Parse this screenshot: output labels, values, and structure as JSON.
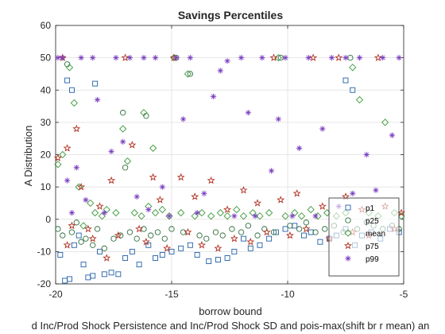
{
  "chart_data": {
    "type": "scatter",
    "title": "Savings Percentiles",
    "xlabel": "borrow bound",
    "ylabel": "A Distribution",
    "bottom_caption": "d Inc/Prod Shock Persistence and Inc/Prod Shock SD and pois-max(shift br r mean) an",
    "xlim": [
      -20,
      -5
    ],
    "ylim": [
      -20,
      60
    ],
    "x_ticks": [
      -20,
      -15,
      -10,
      -5
    ],
    "y_ticks": [
      -20,
      -10,
      0,
      10,
      20,
      30,
      40,
      50,
      60
    ],
    "x_tick_labels": [
      "-20",
      "-15",
      "-10",
      "-5"
    ],
    "y_tick_labels": [
      "-20",
      "-10",
      "0",
      "10",
      "20",
      "30",
      "40",
      "50",
      "60"
    ],
    "grid": true,
    "legend_position": "bottom-right",
    "series": [
      {
        "name": "p1",
        "marker": "square",
        "color": "#1f5fa8",
        "points": [
          [
            -19.8,
            -11
          ],
          [
            -19.6,
            -19
          ],
          [
            -19.4,
            -18.5
          ],
          [
            -19.2,
            -8
          ],
          [
            -19.0,
            -5
          ],
          [
            -18.8,
            -14
          ],
          [
            -18.6,
            -18
          ],
          [
            -18.4,
            -17.5
          ],
          [
            -18.1,
            -10
          ],
          [
            -17.9,
            -17
          ],
          [
            -17.6,
            -16.5
          ],
          [
            -17.3,
            -17
          ],
          [
            -17.0,
            -12
          ],
          [
            -16.7,
            -10
          ],
          [
            -16.4,
            -14
          ],
          [
            -16.0,
            -8
          ],
          [
            -15.7,
            -12
          ],
          [
            -15.4,
            -11
          ],
          [
            -15.0,
            -10
          ],
          [
            -14.6,
            -9
          ],
          [
            -14.2,
            -8
          ],
          [
            -13.9,
            -11
          ],
          [
            -13.4,
            -13
          ],
          [
            -13.0,
            -12.5
          ],
          [
            -12.6,
            -12
          ],
          [
            -12.3,
            -10
          ],
          [
            -11.9,
            -6
          ],
          [
            -11.6,
            -9
          ],
          [
            -11.2,
            -8
          ],
          [
            -10.8,
            -6
          ],
          [
            -10.5,
            -4
          ],
          [
            -10.1,
            -3
          ],
          [
            -9.7,
            -2
          ],
          [
            -9.3,
            -5
          ],
          [
            -9.0,
            -4
          ],
          [
            -8.6,
            -7
          ],
          [
            -8.2,
            -6
          ],
          [
            -7.9,
            -5
          ],
          [
            -7.5,
            -3
          ],
          [
            -7.1,
            -8
          ],
          [
            -6.8,
            -5
          ],
          [
            -6.4,
            -4
          ],
          [
            -6.0,
            -6
          ],
          [
            -5.6,
            -3
          ],
          [
            -5.2,
            -4
          ],
          [
            -19.5,
            43
          ],
          [
            -19.3,
            40
          ],
          [
            -18.3,
            42
          ],
          [
            -7.5,
            43
          ],
          [
            -7.2,
            40
          ]
        ]
      },
      {
        "name": "p25",
        "marker": "circle",
        "color": "#2f6f3f",
        "points": [
          [
            -19.9,
            -3
          ],
          [
            -19.7,
            -5
          ],
          [
            -19.5,
            48
          ],
          [
            -19.3,
            -4
          ],
          [
            -19.1,
            -1
          ],
          [
            -18.9,
            -7
          ],
          [
            -18.7,
            -6
          ],
          [
            -18.4,
            -8
          ],
          [
            -18.2,
            -3
          ],
          [
            -17.9,
            -9
          ],
          [
            -17.5,
            -6
          ],
          [
            -17.2,
            -5
          ],
          [
            -17.0,
            16
          ],
          [
            -16.8,
            -4
          ],
          [
            -16.5,
            -6
          ],
          [
            -16.2,
            -3
          ],
          [
            -15.9,
            -5
          ],
          [
            -15.6,
            -4
          ],
          [
            -15.3,
            -6
          ],
          [
            -15.0,
            -3
          ],
          [
            -14.8,
            50
          ],
          [
            -14.5,
            -4
          ],
          [
            -14.2,
            45
          ],
          [
            -13.8,
            -5
          ],
          [
            -13.5,
            -6
          ],
          [
            -13.1,
            -4
          ],
          [
            -12.8,
            -5
          ],
          [
            -12.4,
            -3
          ],
          [
            -12.0,
            -4
          ],
          [
            -11.7,
            -2
          ],
          [
            -11.3,
            -5
          ],
          [
            -11.0,
            -3
          ],
          [
            -10.6,
            -4
          ],
          [
            -10.3,
            50
          ],
          [
            -9.9,
            -2
          ],
          [
            -9.5,
            -3
          ],
          [
            -9.2,
            -1
          ],
          [
            -8.8,
            -4
          ],
          [
            -8.4,
            -3
          ],
          [
            -8.0,
            -2
          ],
          [
            -7.6,
            -4
          ],
          [
            -7.3,
            50
          ],
          [
            -7.0,
            -3
          ],
          [
            -6.6,
            -1
          ],
          [
            -6.3,
            -2
          ],
          [
            -5.9,
            -3
          ],
          [
            -5.5,
            -2
          ],
          [
            -5.2,
            -3
          ],
          [
            -17.1,
            33
          ],
          [
            -16.1,
            32
          ]
        ]
      },
      {
        "name": "mean",
        "marker": "diamond",
        "color": "#3f9a3f",
        "points": [
          [
            -19.9,
            17
          ],
          [
            -19.7,
            20
          ],
          [
            -19.4,
            47
          ],
          [
            -19.2,
            36
          ],
          [
            -19.0,
            10
          ],
          [
            -18.8,
            -2
          ],
          [
            -18.5,
            5
          ],
          [
            -18.3,
            2
          ],
          [
            -18.0,
            1
          ],
          [
            -17.8,
            3
          ],
          [
            -17.4,
            2
          ],
          [
            -17.1,
            28
          ],
          [
            -16.9,
            18
          ],
          [
            -16.6,
            2
          ],
          [
            -16.3,
            1
          ],
          [
            -16.0,
            4
          ],
          [
            -15.7,
            2
          ],
          [
            -15.4,
            3
          ],
          [
            -15.1,
            1
          ],
          [
            -14.9,
            50
          ],
          [
            -14.6,
            2
          ],
          [
            -14.3,
            45
          ],
          [
            -14.0,
            1
          ],
          [
            -13.7,
            2
          ],
          [
            -13.3,
            1
          ],
          [
            -12.9,
            2
          ],
          [
            -12.6,
            1
          ],
          [
            -12.2,
            3
          ],
          [
            -11.9,
            1
          ],
          [
            -11.5,
            2
          ],
          [
            -11.2,
            1
          ],
          [
            -10.8,
            2
          ],
          [
            -10.4,
            50
          ],
          [
            -10.1,
            1
          ],
          [
            -9.7,
            2
          ],
          [
            -9.4,
            1
          ],
          [
            -9.0,
            3
          ],
          [
            -8.7,
            1
          ],
          [
            -8.3,
            2
          ],
          [
            -7.9,
            1
          ],
          [
            -7.5,
            2
          ],
          [
            -7.2,
            47
          ],
          [
            -6.9,
            37
          ],
          [
            -6.5,
            2
          ],
          [
            -6.1,
            1
          ],
          [
            -5.8,
            30
          ],
          [
            -5.4,
            2
          ],
          [
            -5.1,
            1
          ],
          [
            -16.2,
            33
          ],
          [
            -15.8,
            22
          ]
        ]
      },
      {
        "name": "p75",
        "marker": "star",
        "color": "#b03020",
        "points": [
          [
            -19.9,
            19
          ],
          [
            -19.7,
            50
          ],
          [
            -19.5,
            22
          ],
          [
            -19.3,
            -2
          ],
          [
            -19.1,
            28
          ],
          [
            -18.9,
            10
          ],
          [
            -18.6,
            -3
          ],
          [
            -18.4,
            -6
          ],
          [
            -18.1,
            4
          ],
          [
            -17.8,
            -12
          ],
          [
            -17.6,
            12
          ],
          [
            -17.3,
            -5
          ],
          [
            -17.0,
            50
          ],
          [
            -16.7,
            23
          ],
          [
            -16.4,
            -3
          ],
          [
            -16.1,
            -7
          ],
          [
            -15.8,
            13
          ],
          [
            -15.5,
            6
          ],
          [
            -15.2,
            -9
          ],
          [
            -14.9,
            50
          ],
          [
            -14.6,
            13
          ],
          [
            -14.3,
            -4
          ],
          [
            -14.0,
            7
          ],
          [
            -13.7,
            -8
          ],
          [
            -13.3,
            12
          ],
          [
            -13.0,
            -9
          ],
          [
            -12.6,
            3
          ],
          [
            -12.3,
            -6
          ],
          [
            -11.9,
            9
          ],
          [
            -11.6,
            -7
          ],
          [
            -11.3,
            5
          ],
          [
            -10.9,
            -4
          ],
          [
            -10.6,
            50
          ],
          [
            -10.3,
            6
          ],
          [
            -9.9,
            -5
          ],
          [
            -9.6,
            8
          ],
          [
            -9.2,
            -3
          ],
          [
            -8.9,
            50
          ],
          [
            -8.5,
            4
          ],
          [
            -8.2,
            -6
          ],
          [
            -7.8,
            50
          ],
          [
            -7.5,
            7
          ],
          [
            -7.2,
            -4
          ],
          [
            -6.8,
            3
          ],
          [
            -6.5,
            -5
          ],
          [
            -6.1,
            50
          ],
          [
            -5.8,
            4
          ],
          [
            -5.4,
            -3
          ],
          [
            -5.1,
            2
          ],
          [
            -19.5,
            -8
          ]
        ]
      },
      {
        "name": "p99",
        "marker": "asterisk",
        "color": "#7b3fc0",
        "points": [
          [
            -19.9,
            50
          ],
          [
            -19.7,
            50
          ],
          [
            -19.5,
            12
          ],
          [
            -19.3,
            2
          ],
          [
            -19.1,
            16
          ],
          [
            -18.9,
            50
          ],
          [
            -18.7,
            6
          ],
          [
            -18.4,
            50
          ],
          [
            -18.2,
            37
          ],
          [
            -17.9,
            2
          ],
          [
            -17.6,
            21
          ],
          [
            -17.4,
            50
          ],
          [
            -17.1,
            24
          ],
          [
            -16.8,
            50
          ],
          [
            -16.5,
            7
          ],
          [
            -16.2,
            50
          ],
          [
            -16.0,
            3
          ],
          [
            -15.7,
            50
          ],
          [
            -15.4,
            10
          ],
          [
            -15.1,
            1
          ],
          [
            -14.8,
            50
          ],
          [
            -14.5,
            31
          ],
          [
            -14.2,
            50
          ],
          [
            -13.9,
            2
          ],
          [
            -13.6,
            8
          ],
          [
            -13.2,
            38
          ],
          [
            -12.9,
            46
          ],
          [
            -12.6,
            49
          ],
          [
            -12.3,
            1
          ],
          [
            -12.0,
            50
          ],
          [
            -11.7,
            33
          ],
          [
            -11.4,
            1
          ],
          [
            -11.1,
            50
          ],
          [
            -10.7,
            15
          ],
          [
            -10.4,
            31
          ],
          [
            -10.1,
            50
          ],
          [
            -9.8,
            1
          ],
          [
            -9.5,
            22
          ],
          [
            -9.1,
            50
          ],
          [
            -8.8,
            1
          ],
          [
            -8.5,
            28
          ],
          [
            -8.1,
            50
          ],
          [
            -7.8,
            4
          ],
          [
            -7.5,
            50
          ],
          [
            -7.2,
            8
          ],
          [
            -6.9,
            50
          ],
          [
            -6.6,
            20
          ],
          [
            -6.2,
            9
          ],
          [
            -5.9,
            50
          ],
          [
            -5.5,
            26
          ],
          [
            -5.2,
            50
          ]
        ]
      }
    ]
  }
}
